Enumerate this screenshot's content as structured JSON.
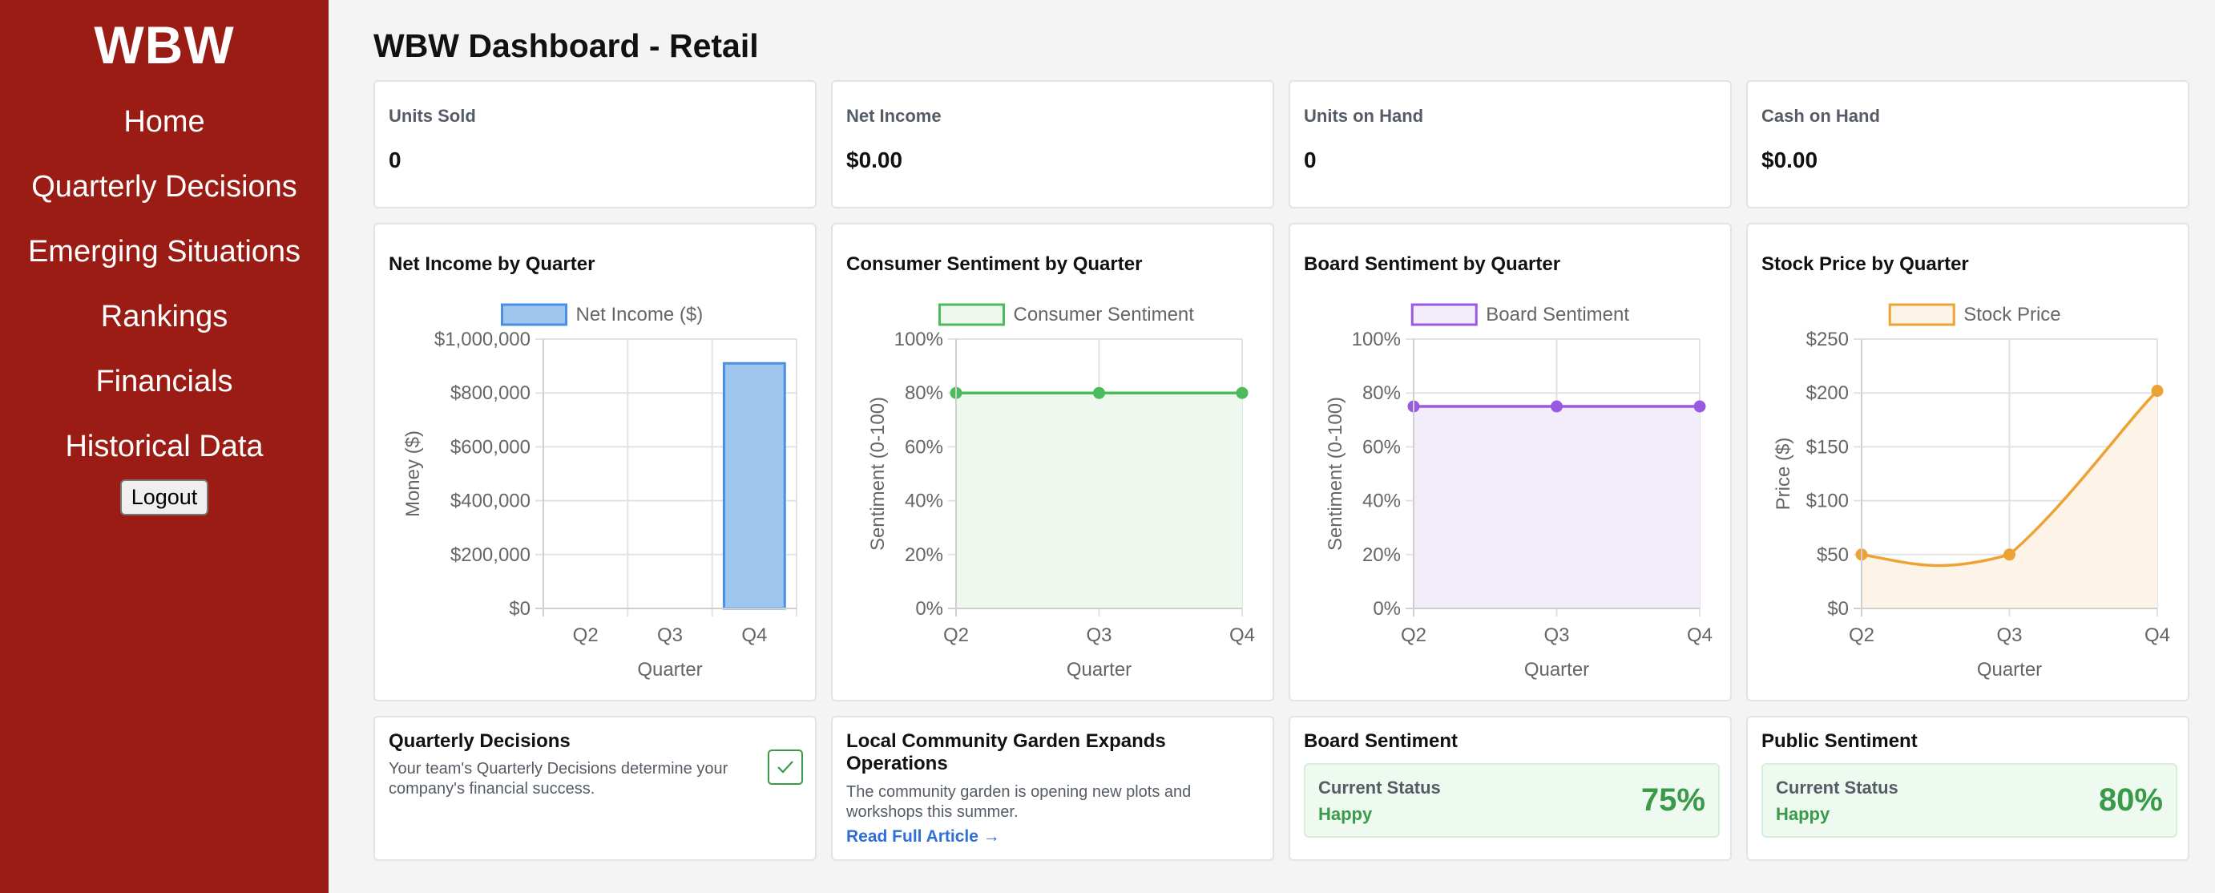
{
  "sidebar": {
    "brand": "WBW",
    "nav": [
      "Home",
      "Quarterly Decisions",
      "Emerging Situations",
      "Rankings",
      "Financials",
      "Historical Data"
    ],
    "logout": "Logout"
  },
  "page": {
    "title": "WBW Dashboard - Retail"
  },
  "stats": [
    {
      "label": "Units Sold",
      "value": "0"
    },
    {
      "label": "Net Income",
      "value": "$0.00"
    },
    {
      "label": "Units on Hand",
      "value": "0"
    },
    {
      "label": "Cash on Hand",
      "value": "$0.00"
    }
  ],
  "charts": [
    {
      "title": "Net Income by Quarter"
    },
    {
      "title": "Consumer Sentiment by Quarter"
    },
    {
      "title": "Board Sentiment by Quarter"
    },
    {
      "title": "Stock Price by Quarter"
    }
  ],
  "chart_data": [
    {
      "type": "bar",
      "title": "Net Income by Quarter",
      "categories": [
        "Q2",
        "Q3",
        "Q4"
      ],
      "series": [
        {
          "name": "Net Income ($)",
          "values": [
            0,
            0,
            910000
          ]
        }
      ],
      "xlabel": "Quarter",
      "ylabel": "Money ($)",
      "ylim": [
        0,
        1000000
      ],
      "yticks": [
        "$0",
        "$200,000",
        "$400,000",
        "$600,000",
        "$800,000",
        "$1,000,000"
      ],
      "grid": true,
      "legend": "top",
      "color": "#4a90e2",
      "fill": "#9fc6ef"
    },
    {
      "type": "area",
      "title": "Consumer Sentiment by Quarter",
      "categories": [
        "Q2",
        "Q3",
        "Q4"
      ],
      "series": [
        {
          "name": "Consumer Sentiment",
          "values": [
            80,
            80,
            80
          ]
        }
      ],
      "xlabel": "Quarter",
      "ylabel": "Sentiment (0-100)",
      "ylim": [
        0,
        100
      ],
      "yticks": [
        "0%",
        "20%",
        "40%",
        "60%",
        "80%",
        "100%"
      ],
      "grid": true,
      "legend": "top",
      "color": "#4cbb5c",
      "fill": "#eef8ef"
    },
    {
      "type": "area",
      "title": "Board Sentiment by Quarter",
      "categories": [
        "Q2",
        "Q3",
        "Q4"
      ],
      "series": [
        {
          "name": "Board Sentiment",
          "values": [
            75,
            75,
            75
          ]
        }
      ],
      "xlabel": "Quarter",
      "ylabel": "Sentiment (0-100)",
      "ylim": [
        0,
        100
      ],
      "yticks": [
        "0%",
        "20%",
        "40%",
        "60%",
        "80%",
        "100%"
      ],
      "grid": true,
      "legend": "top",
      "color": "#9b59e0",
      "fill": "#f3ecfb"
    },
    {
      "type": "area",
      "title": "Stock Price by Quarter",
      "categories": [
        "Q2",
        "Q3",
        "Q4"
      ],
      "series": [
        {
          "name": "Stock Price",
          "values": [
            50,
            50,
            202
          ]
        }
      ],
      "xlabel": "Quarter",
      "ylabel": "Price ($)",
      "ylim": [
        0,
        250
      ],
      "yticks": [
        "$0",
        "$50",
        "$100",
        "$150",
        "$200",
        "$250"
      ],
      "grid": true,
      "legend": "top",
      "color": "#eda236",
      "fill": "#fdf3e6"
    }
  ],
  "decisions": {
    "title": "Quarterly Decisions",
    "text": "Your team's Quarterly Decisions determine your company's financial success.",
    "checked": true
  },
  "news": {
    "title": "Local Community Garden Expands Operations",
    "text": "The community garden is opening new plots and workshops this summer.",
    "link": "Read Full Article →"
  },
  "board_sentiment": {
    "title": "Board Sentiment",
    "label": "Current Status",
    "state": "Happy",
    "value": "75%"
  },
  "public_sentiment": {
    "title": "Public Sentiment",
    "label": "Current Status",
    "state": "Happy",
    "value": "80%"
  },
  "colors": {
    "sidebar": "#9b1c14",
    "positive": "#3a9a4a",
    "link": "#2f6fd6"
  }
}
